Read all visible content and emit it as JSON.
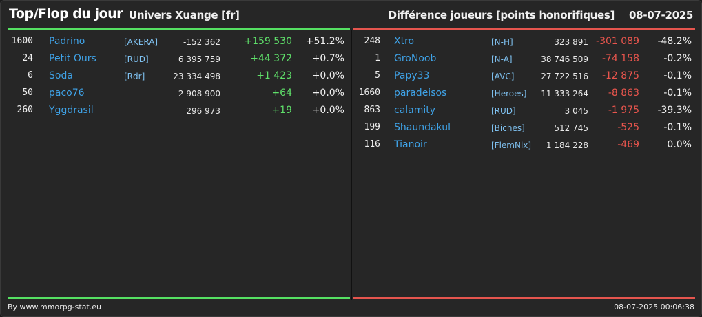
{
  "header": {
    "title": "Top/Flop du jour",
    "universe": "Univers Xuange [fr]",
    "metric": "Différence joueurs [points honorifiques]",
    "date": "08-07-2025"
  },
  "colors": {
    "positive": "#55e062",
    "negative": "#e5554e",
    "name": "#3fa3e8"
  },
  "top": [
    {
      "rank": "1600",
      "name": "Padrino",
      "alliance": "[AKERA]",
      "points": "-152 362",
      "diff": "+159 530",
      "pct": "+51.2%"
    },
    {
      "rank": "24",
      "name": "Petit Ours",
      "alliance": "[RUD]",
      "points": "6 395 759",
      "diff": "+44 372",
      "pct": "+0.7%"
    },
    {
      "rank": "6",
      "name": "Soda",
      "alliance": "[Rdr]",
      "points": "23 334 498",
      "diff": "+1 423",
      "pct": "+0.0%"
    },
    {
      "rank": "50",
      "name": "paco76",
      "alliance": "",
      "points": "2 908 900",
      "diff": "+64",
      "pct": "+0.0%"
    },
    {
      "rank": "260",
      "name": "Yggdrasil",
      "alliance": "",
      "points": "296 973",
      "diff": "+19",
      "pct": "+0.0%"
    }
  ],
  "flop": [
    {
      "rank": "248",
      "name": "Xtro",
      "alliance": "[N-H]",
      "points": "323 891",
      "diff": "-301 089",
      "pct": "-48.2%"
    },
    {
      "rank": "1",
      "name": "GroNoob",
      "alliance": "[N-A]",
      "points": "38 746 509",
      "diff": "-74 158",
      "pct": "-0.2%"
    },
    {
      "rank": "5",
      "name": "Papy33",
      "alliance": "[AVC]",
      "points": "27 722 516",
      "diff": "-12 875",
      "pct": "-0.1%"
    },
    {
      "rank": "1660",
      "name": "paradeisos",
      "alliance": "[Heroes]",
      "points": "-11 333 264",
      "diff": "-8 863",
      "pct": "-0.1%"
    },
    {
      "rank": "863",
      "name": "calamity",
      "alliance": "[RUD]",
      "points": "3 045",
      "diff": "-1 975",
      "pct": "-39.3%"
    },
    {
      "rank": "199",
      "name": "Shaundakul",
      "alliance": "[Biches]",
      "points": "512 745",
      "diff": "-525",
      "pct": "-0.1%"
    },
    {
      "rank": "116",
      "name": "Tianoir",
      "alliance": "[FlemNix]",
      "points": "1 184 228",
      "diff": "-469",
      "pct": "0.0%"
    }
  ],
  "footer": {
    "credit": "By www.mmorpg-stat.eu",
    "timestamp": "08-07-2025 00:06:38"
  }
}
